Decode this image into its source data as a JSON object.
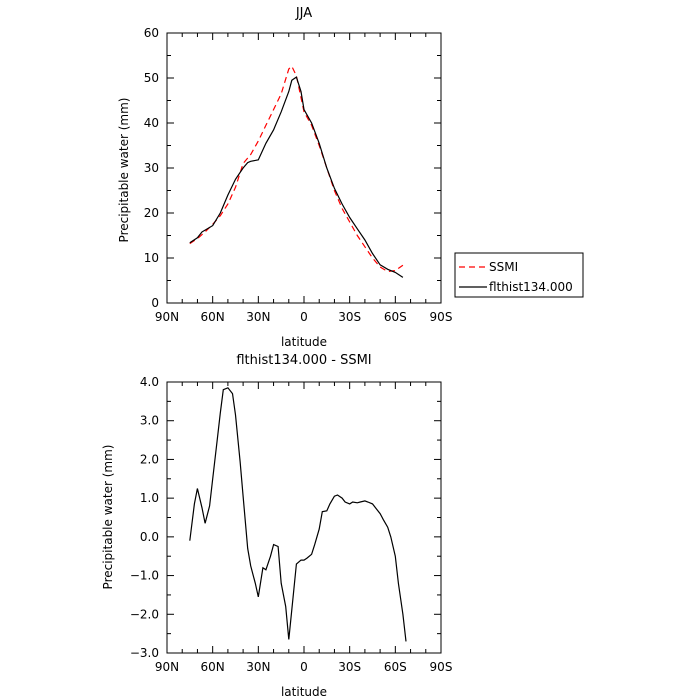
{
  "chart_data": [
    {
      "type": "line",
      "title": "JJA",
      "xlabel": "latitude",
      "ylabel": "Precipitable water (mm)",
      "xlim": [
        90,
        -90
      ],
      "ylim": [
        0,
        60
      ],
      "x_ticks": [
        90,
        60,
        30,
        0,
        -30,
        -60,
        -90
      ],
      "x_tick_labels": [
        "90N",
        "60N",
        "30N",
        "0",
        "30S",
        "60S",
        "90S"
      ],
      "y_ticks": [
        0,
        10,
        20,
        30,
        40,
        50,
        60
      ],
      "y_tick_labels": [
        "0",
        "10",
        "20",
        "30",
        "40",
        "50",
        "60"
      ],
      "grid": false,
      "legend_position": "right",
      "series": [
        {
          "name": "SSMI",
          "color": "#ff0000",
          "style": "dashed",
          "x": [
            75,
            70,
            65,
            60,
            55,
            50,
            45,
            40,
            35,
            30,
            25,
            20,
            15,
            10,
            8,
            5,
            0,
            -5,
            -10,
            -15,
            -20,
            -25,
            -30,
            -35,
            -40,
            -45,
            -50,
            -55,
            -60,
            -65
          ],
          "y": [
            13.2,
            14.3,
            15.8,
            17.5,
            19.4,
            22.0,
            25.7,
            31.0,
            33.0,
            36.0,
            39.5,
            43.0,
            46.5,
            52.0,
            52.6,
            50.5,
            42.5,
            39.5,
            35.0,
            30.0,
            25.0,
            21.0,
            18.0,
            15.0,
            12.5,
            10.0,
            8.0,
            7.0,
            7.2,
            8.4
          ]
        },
        {
          "name": "flthist134.000",
          "color": "#000000",
          "style": "solid",
          "x": [
            75,
            70,
            67,
            65,
            60,
            55,
            50,
            45,
            40,
            37,
            35,
            30,
            25,
            20,
            15,
            10,
            8,
            5,
            2,
            0,
            -5,
            -10,
            -15,
            -20,
            -25,
            -30,
            -35,
            -40,
            -45,
            -50,
            -55,
            -60,
            -65
          ],
          "y": [
            13.4,
            14.5,
            15.8,
            16.2,
            17.2,
            20.0,
            24.0,
            27.5,
            30.0,
            31.2,
            31.5,
            31.8,
            35.5,
            38.5,
            42.5,
            47.0,
            49.5,
            50.2,
            47.0,
            43.0,
            40.0,
            35.5,
            30.0,
            25.5,
            22.0,
            19.0,
            16.5,
            14.0,
            11.0,
            8.5,
            7.5,
            6.8,
            5.7
          ]
        }
      ]
    },
    {
      "type": "line",
      "title": "flthist134.000 - SSMI",
      "xlabel": "latitude",
      "ylabel": "Precipitable water (mm)",
      "xlim": [
        90,
        -90
      ],
      "ylim": [
        -3.0,
        4.0
      ],
      "x_ticks": [
        90,
        60,
        30,
        0,
        -30,
        -60,
        -90
      ],
      "x_tick_labels": [
        "90N",
        "60N",
        "30N",
        "0",
        "30S",
        "60S",
        "90S"
      ],
      "y_ticks": [
        -3.0,
        -2.0,
        -1.0,
        0.0,
        1.0,
        2.0,
        3.0,
        4.0
      ],
      "y_tick_labels": [
        "−3.0",
        "−2.0",
        "−1.0",
        "0.0",
        "1.0",
        "2.0",
        "3.0",
        "4.0"
      ],
      "grid": false,
      "series": [
        {
          "color": "#000000",
          "style": "solid",
          "x": [
            75,
            72,
            70,
            67,
            65,
            62,
            60,
            57,
            55,
            53,
            50,
            47,
            45,
            42,
            40,
            37,
            35,
            32,
            30,
            27,
            25,
            22,
            20,
            17,
            15,
            12,
            10,
            7,
            5,
            2,
            0,
            -2,
            -5,
            -7,
            -10,
            -12,
            -15,
            -17,
            -20,
            -22,
            -25,
            -27,
            -30,
            -32,
            -35,
            -37,
            -40,
            -42,
            -45,
            -47,
            -50,
            -52,
            -55,
            -57,
            -60,
            -62,
            -65,
            -67
          ],
          "y": [
            -0.1,
            0.85,
            1.25,
            0.75,
            0.35,
            0.8,
            1.5,
            2.5,
            3.2,
            3.8,
            3.85,
            3.7,
            3.15,
            1.95,
            1.05,
            -0.3,
            -0.75,
            -1.2,
            -1.55,
            -0.8,
            -0.85,
            -0.5,
            -0.2,
            -0.25,
            -1.2,
            -1.8,
            -2.65,
            -1.5,
            -0.7,
            -0.6,
            -0.6,
            -0.55,
            -0.45,
            -0.2,
            0.2,
            0.65,
            0.67,
            0.85,
            1.05,
            1.08,
            1.0,
            0.9,
            0.85,
            0.9,
            0.88,
            0.9,
            0.93,
            0.9,
            0.85,
            0.75,
            0.6,
            0.45,
            0.25,
            0.0,
            -0.5,
            -1.2,
            -2.0,
            -2.7
          ]
        }
      ]
    }
  ]
}
